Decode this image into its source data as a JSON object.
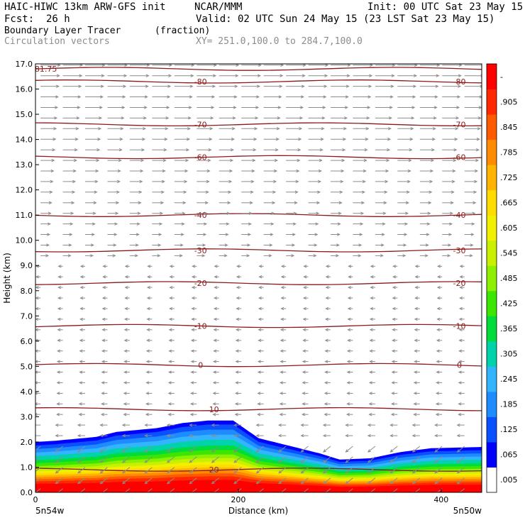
{
  "header": {
    "model": "HAIC-HIWC 13km ARW-GFS init",
    "org": "NCAR/MMM",
    "init": "Init: 00 UTC Sat 23 May 15",
    "fcst_label": "Fcst:",
    "fcst_value": "26 h",
    "valid": "Valid: 02 UTC Sun 24 May 15 (23 LST Sat 23 May 15)",
    "field": "Boundary Layer Tracer",
    "field_units": "(fraction)",
    "overlay": "Circulation vectors",
    "xy": "XY= 251.0,100.0 to 284.7,100.0"
  },
  "colors": {
    "contour": "#8b1a1a",
    "vector": "#8c8c8c",
    "scale": [
      "#ffffff",
      "#0000ff",
      "#0a50ff",
      "#1e8cff",
      "#32b4ff",
      "#00d2aa",
      "#00dc3c",
      "#3ce600",
      "#8cf000",
      "#c8f000",
      "#f0f000",
      "#ffdc00",
      "#ffb400",
      "#ff8c00",
      "#ff5a00",
      "#ff2800",
      "#ff0000"
    ]
  },
  "chart_data": {
    "type": "heatmap",
    "ylabel": "Height (km)",
    "xlabel": "Distance (km)",
    "xlim": [
      0,
      440
    ],
    "ylim": [
      0,
      17
    ],
    "x_ticks": [
      0,
      200,
      400
    ],
    "x_tick_labels": [
      "0",
      "200",
      "400"
    ],
    "y_ticks": [
      0,
      1,
      2,
      3,
      4,
      5,
      6,
      7,
      8,
      9,
      10,
      11,
      12,
      13,
      14,
      15,
      16,
      17
    ],
    "y_tick_labels": [
      "0.0",
      "1.0",
      "2.0",
      "3.0",
      "4.0",
      "5.0",
      "6.0",
      "7.0",
      "8.0",
      "9.0",
      "10.0",
      "11.0",
      "12.0",
      "13.0",
      "14.0",
      "15.0",
      "16.0",
      "17.0"
    ],
    "endpoints": {
      "left": "5n54w",
      "right": "5n50w"
    },
    "colorbar": {
      "labels": [
        ".005",
        ".065",
        ".125",
        ".185",
        ".245",
        ".305",
        ".365",
        ".425",
        ".485",
        ".545",
        ".605",
        ".665",
        ".725",
        ".785",
        ".845",
        ".905",
        "-"
      ]
    },
    "tracer_top_km": [
      [
        0,
        2.0
      ],
      [
        20,
        2.05
      ],
      [
        60,
        2.2
      ],
      [
        80,
        2.4
      ],
      [
        120,
        2.55
      ],
      [
        145,
        2.75
      ],
      [
        170,
        2.85
      ],
      [
        195,
        2.85
      ],
      [
        220,
        2.15
      ],
      [
        250,
        1.85
      ],
      [
        280,
        1.55
      ],
      [
        300,
        1.3
      ],
      [
        330,
        1.35
      ],
      [
        360,
        1.6
      ],
      [
        390,
        1.75
      ],
      [
        440,
        1.8
      ]
    ],
    "isotherms": [
      {
        "label": "-81.75",
        "height_km": 16.8
      },
      {
        "label": "-80",
        "height_km": 16.3
      },
      {
        "label": "-70",
        "height_km": 14.6
      },
      {
        "label": "-60",
        "height_km": 13.3
      },
      {
        "label": "-40",
        "height_km": 11.0
      },
      {
        "label": "-30",
        "height_km": 9.6
      },
      {
        "label": "-20",
        "height_km": 8.3
      },
      {
        "label": "-10",
        "height_km": 6.6
      },
      {
        "label": "0",
        "height_km": 5.05
      },
      {
        "label": "10",
        "height_km": 3.3
      },
      {
        "label": "20",
        "height_km": 0.9
      }
    ]
  }
}
